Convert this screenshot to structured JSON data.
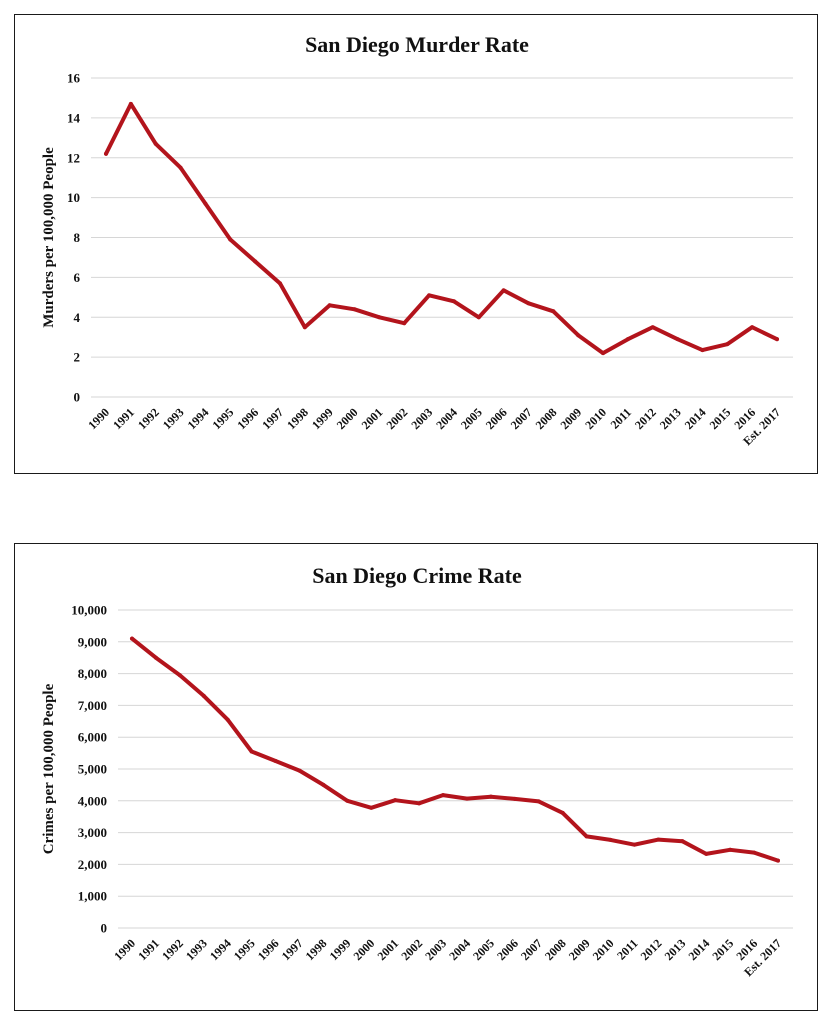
{
  "chart_data": [
    {
      "type": "line",
      "title": "San Diego Murder Rate",
      "xlabel": "",
      "ylabel": "Murders per 100,000 People",
      "ylim": [
        0,
        16
      ],
      "yticks": [
        "0",
        "2",
        "4",
        "6",
        "8",
        "10",
        "12",
        "14",
        "16"
      ],
      "grid": true,
      "legend": "none",
      "color": "#b3141c",
      "categories": [
        "1990",
        "1991",
        "1992",
        "1993",
        "1994",
        "1995",
        "1996",
        "1997",
        "1998",
        "1999",
        "2000",
        "2001",
        "2002",
        "2003",
        "2004",
        "2005",
        "2006",
        "2007",
        "2008",
        "2009",
        "2010",
        "2011",
        "2012",
        "2013",
        "2014",
        "2015",
        "2016",
        "Est. 2017"
      ],
      "values": [
        12.2,
        14.7,
        12.7,
        11.5,
        9.7,
        7.9,
        6.8,
        5.7,
        3.5,
        4.6,
        4.4,
        4.0,
        3.7,
        5.1,
        4.8,
        4.0,
        5.35,
        4.7,
        4.3,
        3.1,
        2.2,
        2.9,
        3.5,
        2.9,
        2.35,
        2.65,
        3.5,
        2.9
      ]
    },
    {
      "type": "line",
      "title": "San Diego Crime Rate",
      "xlabel": "",
      "ylabel": "Crimes per 100,000 People",
      "ylim": [
        0,
        10000
      ],
      "yticks": [
        "0",
        "1,000",
        "2,000",
        "3,000",
        "4,000",
        "5,000",
        "6,000",
        "7,000",
        "8,000",
        "9,000",
        "10,000"
      ],
      "grid": true,
      "legend": "none",
      "color": "#b3141c",
      "categories": [
        "1990",
        "1991",
        "1992",
        "1993",
        "1994",
        "1995",
        "1996",
        "1997",
        "1998",
        "1999",
        "2000",
        "2001",
        "2002",
        "2003",
        "2004",
        "2005",
        "2006",
        "2007",
        "2008",
        "2009",
        "2010",
        "2011",
        "2012",
        "2013",
        "2014",
        "2015",
        "2016",
        "Est. 2017"
      ],
      "values": [
        9100,
        8500,
        7950,
        7300,
        6550,
        5550,
        5250,
        4950,
        4500,
        4000,
        3780,
        4020,
        3920,
        4180,
        4070,
        4130,
        4060,
        3980,
        3620,
        2880,
        2770,
        2620,
        2780,
        2730,
        2330,
        2460,
        2370,
        2120
      ]
    }
  ]
}
